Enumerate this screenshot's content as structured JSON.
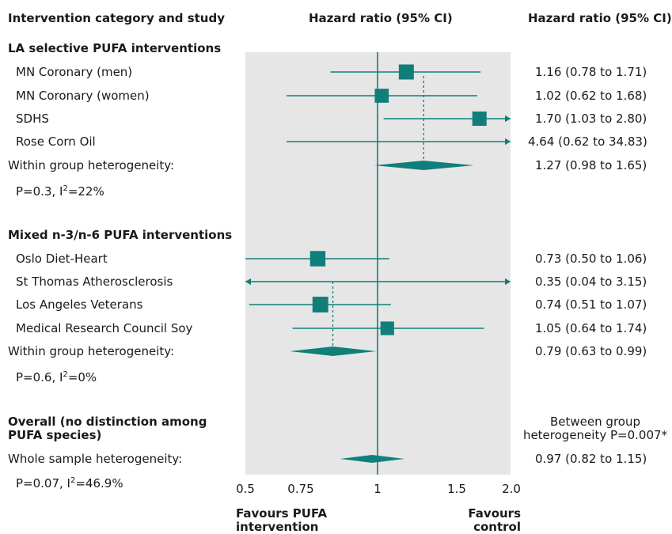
{
  "chart_data": {
    "type": "forest",
    "title": "",
    "headers": {
      "study": "Intervention category and study",
      "plot": "Hazard ratio (95% CI)",
      "ci": "Hazard ratio (95% CI)"
    },
    "x_axis": {
      "scale": "log",
      "range": [
        0.5,
        2.0
      ],
      "ticks": [
        0.5,
        0.75,
        1.0,
        1.5,
        2.0
      ],
      "tick_labels": [
        "0.5",
        "0.75",
        "1",
        "1.5",
        "2.0"
      ],
      "favours_left": [
        "Favours PUFA",
        "intervention"
      ],
      "favours_right": [
        "Favours",
        "control"
      ]
    },
    "reference_line": 1.0,
    "shaded_region": true,
    "groups": [
      {
        "label": "LA selective PUFA interventions",
        "studies": [
          {
            "name": "MN Coronary (men)",
            "hr": 1.16,
            "lo": 0.78,
            "hi": 1.71,
            "ci_text": "1.16 (0.78 to 1.71)",
            "weight": 1.0
          },
          {
            "name": "MN Coronary (women)",
            "hr": 1.02,
            "lo": 0.62,
            "hi": 1.68,
            "ci_text": "1.02 (0.62 to 1.68)",
            "weight": 0.85
          },
          {
            "name": "SDHS",
            "hr": 1.7,
            "lo": 1.03,
            "hi": 2.8,
            "ci_text": "1.70 (1.03 to 2.80)",
            "weight": 0.9
          },
          {
            "name": "Rose Corn Oil",
            "hr": 4.64,
            "lo": 0.62,
            "hi": 34.83,
            "ci_text": "4.64 (0.62 to 34.83)",
            "weight": 0.2
          }
        ],
        "pooled": {
          "label": "Within group heterogeneity:",
          "hr": 1.27,
          "lo": 0.98,
          "hi": 1.65,
          "ci_text": "1.27 (0.98 to 1.65)"
        },
        "heterogeneity_p": "P=0.3, I",
        "heterogeneity_sup": "2",
        "heterogeneity_val": "=22%"
      },
      {
        "label": "Mixed n-3/n-6 PUFA interventions",
        "studies": [
          {
            "name": "Oslo Diet-Heart",
            "hr": 0.73,
            "lo": 0.5,
            "hi": 1.06,
            "ci_text": "0.73 (0.50 to 1.06)",
            "weight": 1.05
          },
          {
            "name": "St Thomas Atherosclerosis",
            "hr": 0.35,
            "lo": 0.04,
            "hi": 3.15,
            "ci_text": "0.35 (0.04 to 3.15)",
            "weight": 0.1
          },
          {
            "name": "Los Angeles Veterans",
            "hr": 0.74,
            "lo": 0.51,
            "hi": 1.07,
            "ci_text": "0.74 (0.51 to 1.07)",
            "weight": 1.1
          },
          {
            "name": "Medical Research Council Soy",
            "hr": 1.05,
            "lo": 0.64,
            "hi": 1.74,
            "ci_text": "1.05 (0.64 to 1.74)",
            "weight": 0.8
          }
        ],
        "pooled": {
          "label": "Within group heterogeneity:",
          "hr": 0.79,
          "lo": 0.63,
          "hi": 0.99,
          "ci_text": "0.79 (0.63 to 0.99)"
        },
        "heterogeneity_p": "P=0.6, I",
        "heterogeneity_sup": "2",
        "heterogeneity_val": "=0%"
      }
    ],
    "overall": {
      "label_line1": "Overall (no distinction among",
      "label_line2": "PUFA species)",
      "between_line1": "Between group",
      "between_line2": "heterogeneity P=0.007*",
      "pooled": {
        "label": "Whole sample heterogeneity:",
        "hr": 0.97,
        "lo": 0.82,
        "hi": 1.15,
        "ci_text": "0.97 (0.82 to 1.15)"
      },
      "heterogeneity_p": "P=0.07, I",
      "heterogeneity_sup": "2",
      "heterogeneity_val": "=46.9%"
    },
    "colors": {
      "marker": "#107f7a",
      "shade": "#e6e6e6",
      "line": "#107f7a"
    }
  }
}
